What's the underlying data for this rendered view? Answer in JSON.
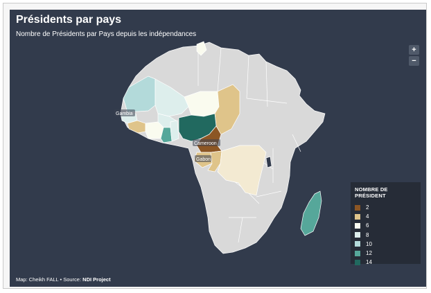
{
  "map": {
    "title": "Présidents par pays",
    "subtitle": "Nombre de Présidents par Pays depuis les indépendances",
    "zoom_in_label": "+",
    "zoom_out_label": "−",
    "credit_prefix": "Map: Cheikh FALL • Source: ",
    "credit_source": "NDI Project",
    "labels": {
      "gambia": "Gambia",
      "cameroon": "Cameroon",
      "gabon": "Gabon"
    }
  },
  "legend": {
    "title": "NOMBRE DE PRÉSIDENT",
    "items": [
      {
        "value": "2",
        "color": "#8c5624"
      },
      {
        "value": "4",
        "color": "#dfc48a"
      },
      {
        "value": "6",
        "color": "#fafbef"
      },
      {
        "value": "8",
        "color": "#ddeeec"
      },
      {
        "value": "10",
        "color": "#b3dada"
      },
      {
        "value": "12",
        "color": "#56a79a"
      },
      {
        "value": "14",
        "color": "#21695f"
      }
    ]
  },
  "colors": {
    "no_data": "#d9d9d9",
    "panel": "#323b4c",
    "legend_bg": "#262c37"
  }
}
